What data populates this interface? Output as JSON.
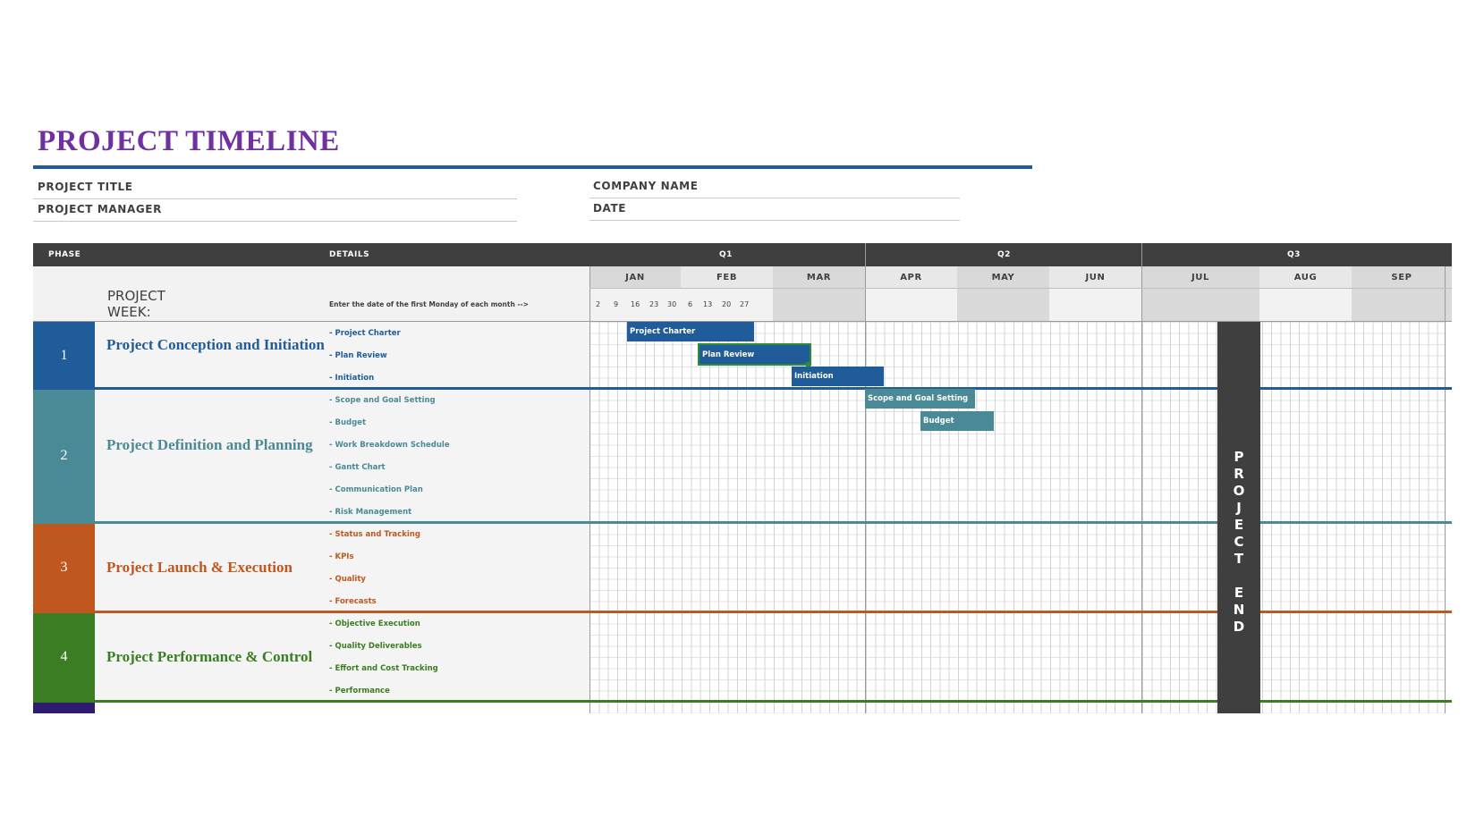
{
  "title": "PROJECT TIMELINE",
  "meta": {
    "project_title": "PROJECT TITLE",
    "project_manager": "PROJECT MANAGER",
    "company_name": "COMPANY NAME",
    "date": "DATE"
  },
  "header": {
    "phase": "PHASE",
    "details": "DETAILS",
    "quarters": [
      "Q1",
      "Q2",
      "Q3"
    ],
    "months": [
      "JAN",
      "FEB",
      "MAR",
      "APR",
      "MAY",
      "JUN",
      "JUL",
      "AUG",
      "SEP"
    ]
  },
  "project_week": {
    "label": "PROJECT WEEK:",
    "hint": "Enter the date of the first Monday of each month -->",
    "weeks": [
      "2",
      "9",
      "16",
      "23",
      "30",
      "6",
      "13",
      "20",
      "27"
    ]
  },
  "phases": [
    {
      "num": "1",
      "name": "Project Conception and Initiation",
      "color": "#1f5c99",
      "details": [
        "- Project Charter",
        "- Plan Review",
        "- Initiation"
      ]
    },
    {
      "num": "2",
      "name": "Project Definition and Planning",
      "color": "#4a8a96",
      "details": [
        "- Scope and Goal Setting",
        "- Budget",
        "- Work Breakdown Schedule",
        "- Gantt Chart",
        "- Communication Plan",
        "- Risk Management"
      ]
    },
    {
      "num": "3",
      "name": "Project Launch & Execution",
      "color": "#c0571f",
      "details": [
        "- Status and Tracking",
        "- KPIs",
        "- Quality",
        "- Forecasts"
      ]
    },
    {
      "num": "4",
      "name": "Project Performance & Control",
      "color": "#3a7d22",
      "details": [
        "- Objective Execution",
        "- Quality Deliverables",
        "- Effort and Cost Tracking",
        "- Performance"
      ]
    }
  ],
  "bars": {
    "project_charter": "Project Charter",
    "plan_review": "Plan Review",
    "initiation": "Initiation",
    "scope": "Scope and Goal Setting",
    "budget": "Budget"
  },
  "project_end": [
    "P",
    "R",
    "O",
    "J",
    "E",
    "C",
    "T",
    "E",
    "N",
    "D"
  ],
  "colors": {
    "title": "#7030a0",
    "header_bg": "#3f3f3f",
    "phase1": "#1f5c99",
    "phase2": "#4a8a96",
    "phase3": "#c0571f",
    "phase4": "#3a7d22",
    "phase5": "#2e1a6e"
  }
}
